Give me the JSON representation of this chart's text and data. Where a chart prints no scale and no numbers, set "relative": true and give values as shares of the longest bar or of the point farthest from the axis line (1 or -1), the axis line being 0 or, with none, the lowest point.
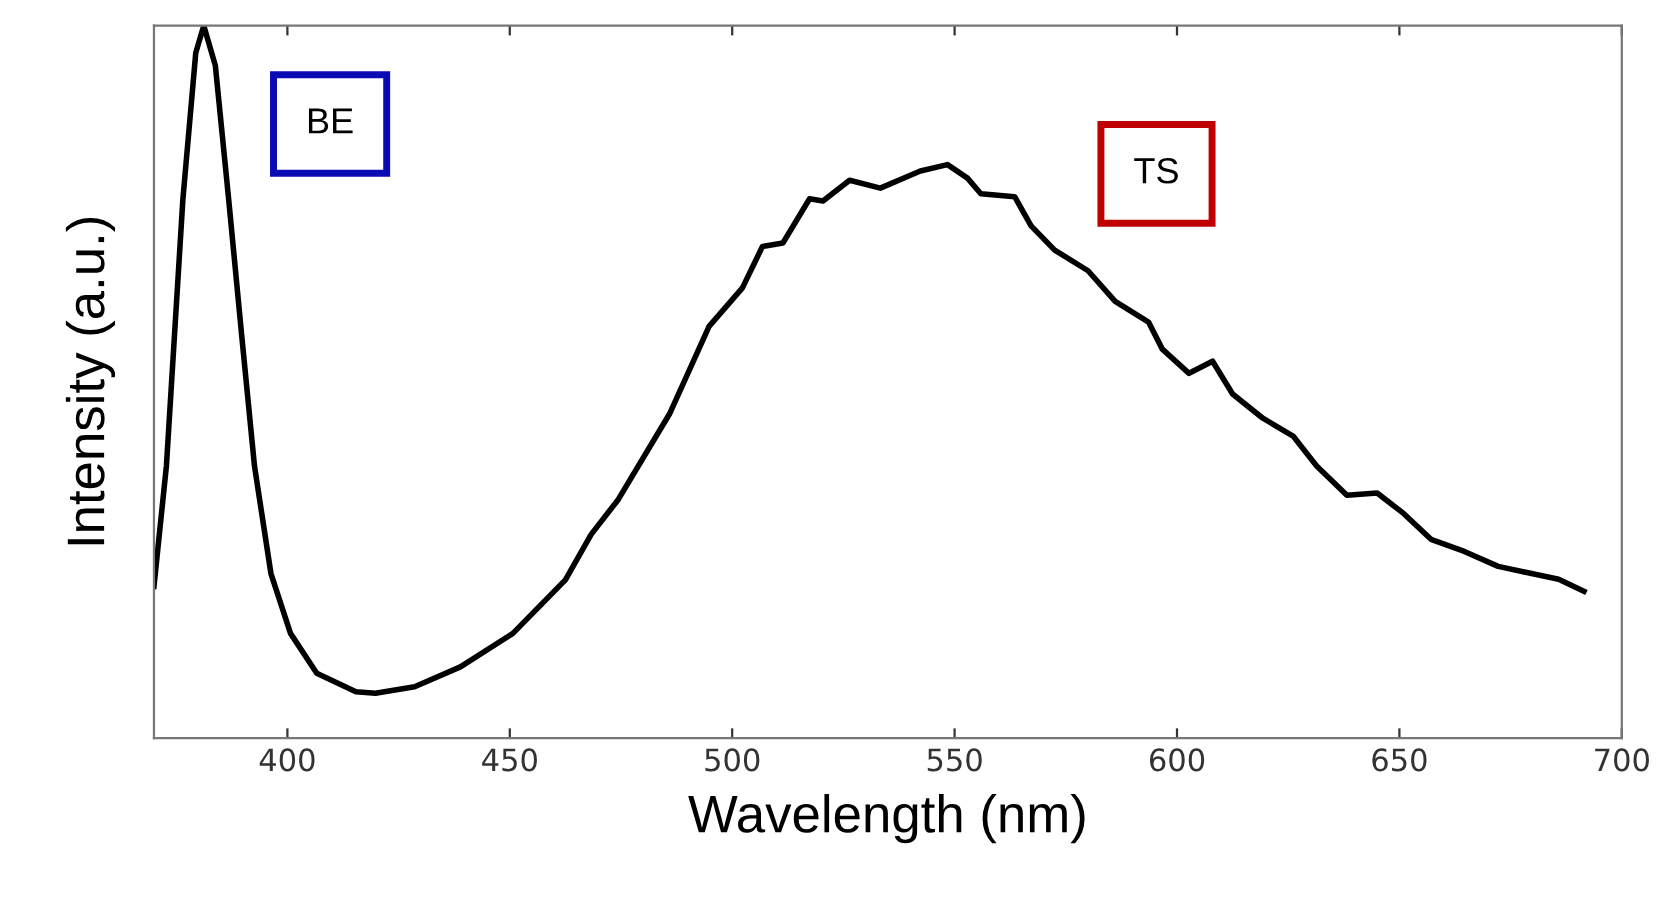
{
  "chart_data": {
    "type": "line",
    "xlabel": "Wavelength (nm)",
    "ylabel": "Intensity (a.u.)",
    "relative": true,
    "xlim": [
      370,
      700
    ],
    "xticks": [
      400,
      450,
      500,
      550,
      600,
      650,
      700
    ],
    "grid": false,
    "legend": false,
    "marker": "none",
    "line_style": "solid",
    "annotations": [
      "BE",
      "TS"
    ],
    "series": [
      {
        "color": "#000000",
        "x": [
          370,
          372.8,
          376.5,
          379.4,
          381.2,
          383.8,
          386.8,
          389.7,
          392.6,
          396.3,
          400.7,
          406.6,
          415.4,
          419.8,
          428.6,
          438.9,
          450.7,
          462.5,
          468.3,
          474.4,
          486,
          494.8,
          502.3,
          506.8,
          511.4,
          517.4,
          520.4,
          526.4,
          533.3,
          542.3,
          548.4,
          552.9,
          555.9,
          563.5,
          567.2,
          572.5,
          580,
          586.1,
          593.6,
          596.7,
          602.7,
          608,
          612.5,
          619.3,
          626.1,
          631.4,
          638.2,
          645,
          651,
          657.1,
          664.6,
          672.2,
          679.7,
          685.8,
          691.5
        ],
        "values": [
          0.213,
          0.382,
          0.756,
          0.962,
          1.0,
          0.944,
          0.756,
          0.567,
          0.382,
          0.231,
          0.147,
          0.091,
          0.065,
          0.063,
          0.072,
          0.1,
          0.147,
          0.222,
          0.286,
          0.335,
          0.456,
          0.578,
          0.632,
          0.69,
          0.695,
          0.757,
          0.754,
          0.783,
          0.772,
          0.796,
          0.805,
          0.786,
          0.764,
          0.76,
          0.719,
          0.685,
          0.656,
          0.613,
          0.584,
          0.546,
          0.512,
          0.529,
          0.483,
          0.449,
          0.424,
          0.382,
          0.341,
          0.344,
          0.315,
          0.279,
          0.262,
          0.241,
          0.231,
          0.223,
          0.206
        ]
      }
    ]
  }
}
